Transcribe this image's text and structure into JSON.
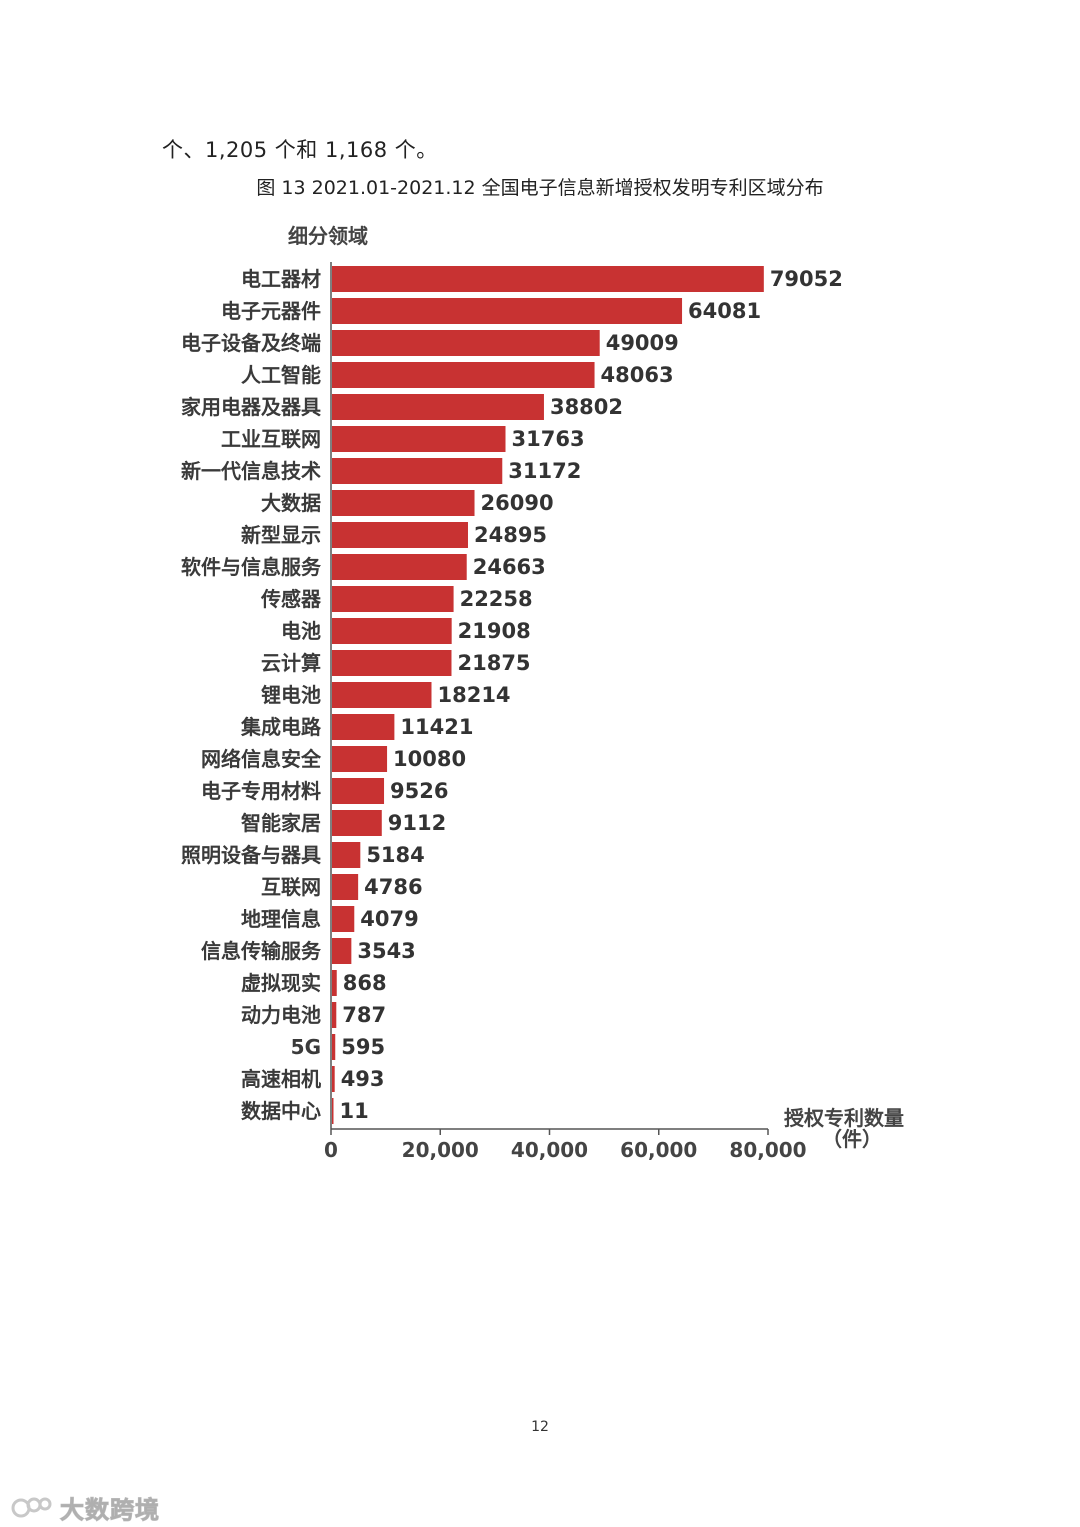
{
  "document": {
    "intro_text": "个、1,205 个和 1,168 个。",
    "figure_caption": "图 13 2021.01-2021.12 全国电子信息新增授权发明专利区域分布",
    "page_number": "12"
  },
  "watermark": {
    "text": "大数跨境",
    "icon": "brand-logo-icon"
  },
  "colors": {
    "bar": "#c83232",
    "axis": "#555555"
  },
  "chart_data": {
    "type": "bar",
    "orientation": "horizontal",
    "y_axis_title": "细分领域",
    "x_axis_title_line1": "授权专利数量",
    "x_axis_title_line2": "（件）",
    "xlim": [
      0,
      80000
    ],
    "x_ticks": [
      0,
      20000,
      40000,
      60000,
      80000
    ],
    "x_tick_labels": [
      "0",
      "20,000",
      "40,000",
      "60,000",
      "80,000"
    ],
    "categories": [
      "电工器材",
      "电子元器件",
      "电子设备及终端",
      "人工智能",
      "家用电器及器具",
      "工业互联网",
      "新一代信息技术",
      "大数据",
      "新型显示",
      "软件与信息服务",
      "传感器",
      "电池",
      "云计算",
      "锂电池",
      "集成电路",
      "网络信息安全",
      "电子专用材料",
      "智能家居",
      "照明设备与器具",
      "互联网",
      "地理信息",
      "信息传输服务",
      "虚拟现实",
      "动力电池",
      "5G",
      "高速相机",
      "数据中心"
    ],
    "values": [
      79052,
      64081,
      49009,
      48063,
      38802,
      31763,
      31172,
      26090,
      24895,
      24663,
      22258,
      21908,
      21875,
      18214,
      11421,
      10080,
      9526,
      9112,
      5184,
      4786,
      4079,
      3543,
      868,
      787,
      595,
      493,
      11
    ],
    "value_labels": [
      "79052",
      "64081",
      "49009",
      "48063",
      "38802",
      "31763",
      "31172",
      "26090",
      "24895",
      "24663",
      "22258",
      "21908",
      "21875",
      "18214",
      "11421",
      "10080",
      "9526",
      "9112",
      "5184",
      "4786",
      "4079",
      "3543",
      "868",
      "787",
      "595",
      "493",
      "11"
    ],
    "grid": false,
    "legend": "none"
  }
}
